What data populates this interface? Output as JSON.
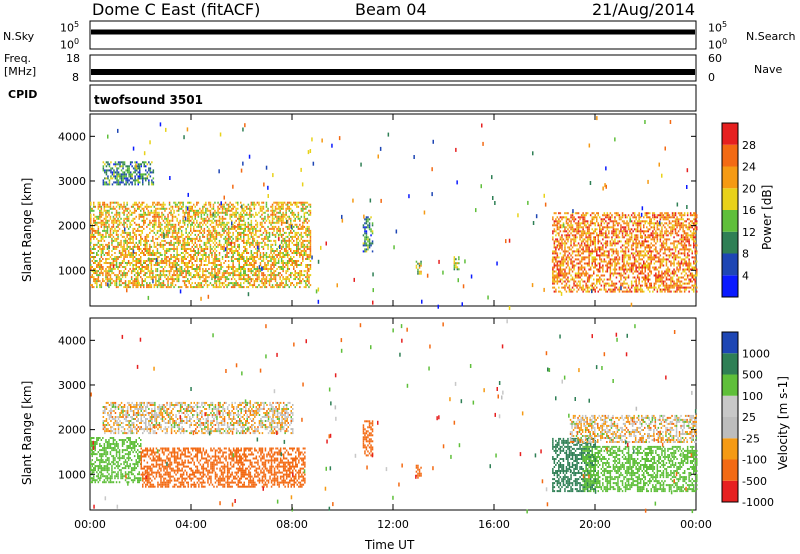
{
  "header": {
    "station": "Dome C East (fitACF)",
    "beam": "Beam 04",
    "date": "21/Aug/2014"
  },
  "panels": {
    "nsky": {
      "label": "N.Sky",
      "left_ticks": [
        "10^5",
        "10^0"
      ],
      "right_ticks": [
        "10^5",
        "10^0"
      ],
      "right_label": "N.Search"
    },
    "freq": {
      "label_line1": "Freq.",
      "label_line2": "[MHz]",
      "left_ticks": [
        "18",
        "8"
      ],
      "right_ticks": [
        "60",
        "0"
      ],
      "right_label": "Nave"
    },
    "cpid": {
      "label": "CPID",
      "program": "twofsound 3501"
    }
  },
  "colors": {
    "power": [
      "#0a1aff",
      "#1e46b4",
      "#2f7f55",
      "#5fbf3a",
      "#e8d21a",
      "#f59a13",
      "#f36a13",
      "#e62020"
    ],
    "velocity": [
      "#e62020",
      "#f36a13",
      "#f59a13",
      "#bdbdbd",
      "#c8c8c8",
      "#5fbf3a",
      "#2f7f55",
      "#1e46b4"
    ]
  },
  "chart_data": [
    {
      "type": "heatmap",
      "title": "",
      "xlabel": "Time UT",
      "ylabel": "Slant Range [km]",
      "colorbar_label": "Power [dB]",
      "colorbar_ticks": [
        "28",
        "24",
        "20",
        "16",
        "12",
        "8",
        "4"
      ],
      "xlim": [
        0,
        24
      ],
      "ylim": [
        200,
        4500
      ],
      "x_ticks": [
        "00:00",
        "04:00",
        "08:00",
        "12:00",
        "16:00",
        "20:00",
        "00:00"
      ],
      "y_ticks": [
        "4000",
        "3000",
        "2000",
        "1000"
      ],
      "regions": [
        {
          "t0": 0.0,
          "t1": 8.7,
          "r0": 600,
          "r1": 2500,
          "value": 20
        },
        {
          "t0": 0.5,
          "t1": 2.5,
          "r0": 2900,
          "r1": 3400,
          "value": 10
        },
        {
          "t0": 10.8,
          "t1": 11.2,
          "r0": 1400,
          "r1": 2200,
          "value": 10
        },
        {
          "t0": 12.9,
          "t1": 13.1,
          "r0": 900,
          "r1": 1200,
          "value": 16
        },
        {
          "t0": 14.4,
          "t1": 14.6,
          "r0": 1000,
          "r1": 1300,
          "value": 16
        },
        {
          "t0": 18.3,
          "t1": 24.0,
          "r0": 500,
          "r1": 2300,
          "value": 24
        }
      ]
    },
    {
      "type": "heatmap",
      "title": "",
      "xlabel": "Time UT",
      "ylabel": "Slant Range [km]",
      "colorbar_label": "Velocity [m s-1]",
      "colorbar_ticks": [
        "1000",
        "500",
        "100",
        "25",
        "-25",
        "-100",
        "-500",
        "-1000"
      ],
      "xlim": [
        0,
        24
      ],
      "ylim": [
        200,
        4500
      ],
      "x_ticks": [
        "00:00",
        "04:00",
        "08:00",
        "12:00",
        "16:00",
        "20:00",
        "00:00"
      ],
      "y_ticks": [
        "4000",
        "3000",
        "2000",
        "1000"
      ],
      "regions": [
        {
          "t0": 0.0,
          "t1": 2.0,
          "r0": 800,
          "r1": 1800,
          "value": 300
        },
        {
          "t0": 2.0,
          "t1": 8.5,
          "r0": 700,
          "r1": 1600,
          "value": -300
        },
        {
          "t0": 0.5,
          "t1": 8.0,
          "r0": 1900,
          "r1": 2600,
          "value": 0
        },
        {
          "t0": 10.8,
          "t1": 11.2,
          "r0": 1400,
          "r1": 2200,
          "value": -300
        },
        {
          "t0": 12.9,
          "t1": 13.1,
          "r0": 900,
          "r1": 1200,
          "value": -300
        },
        {
          "t0": 18.3,
          "t1": 20.0,
          "r0": 600,
          "r1": 1800,
          "value": 800
        },
        {
          "t0": 19.5,
          "t1": 24.0,
          "r0": 600,
          "r1": 1600,
          "value": 300
        },
        {
          "t0": 19.0,
          "t1": 24.0,
          "r0": 1700,
          "r1": 2300,
          "value": 0
        }
      ]
    }
  ]
}
